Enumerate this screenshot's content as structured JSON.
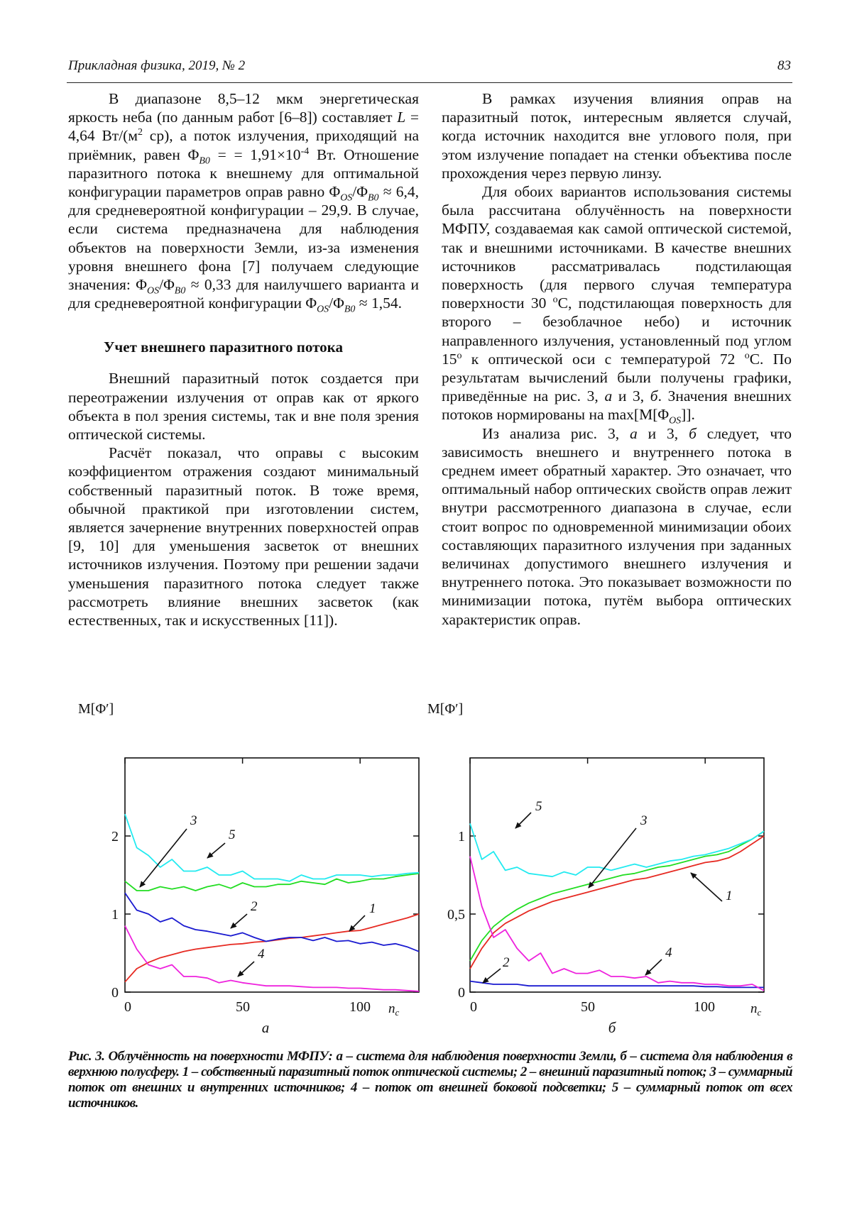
{
  "header": {
    "journal": "Прикладная физика, 2019, № 2",
    "page_number": "83"
  },
  "left_column": {
    "p1": [
      "В диапазоне 8,5–12 мкм энергетическая яркость неба (по данным работ [6–8]) составляет ",
      {
        "i": "L"
      },
      " = 4,64 Вт/(м",
      {
        "sup": "2"
      },
      " ср), а поток излучения, приходящий на приёмник, равен Φ",
      {
        "sub": "B0"
      },
      " = = 1,91×10",
      {
        "sup": "-4"
      },
      " Вт. Отношение паразитного потока к внешнему для оптимальной конфигурации параметров оправ равно Φ",
      {
        "sub": "OS"
      },
      "/Φ",
      {
        "sub": "B0"
      },
      " ≈ 6,4, для средневероятной конфигурации – 29,9. В случае, если система предназначена для наблюдения объектов на поверхности Земли, из-за изменения уровня внешнего фона [7] получаем следующие значения: Φ",
      {
        "sub": "OS"
      },
      "/Φ",
      {
        "sub": "B0"
      },
      " ≈ 0,33 для наилучшего варианта и для средневероятной конфигурации Φ",
      {
        "sub": "OS"
      },
      "/Φ",
      {
        "sub": "B0"
      },
      " ≈ 1,54."
    ],
    "heading": "Учет внешнего паразитного потока",
    "p2": [
      "Внешний паразитный поток создается при переотражении излучения от оправ как от яркого объекта в пол зрения системы, так и вне поля зрения оптической системы."
    ],
    "p3": [
      "Расчёт показал, что оправы с высоким коэффициентом отражения создают минимальный собственный паразитный поток. В тоже время, обычной практикой при изготовлении систем, является зачернение внутренних поверхностей оправ [9, 10] для уменьшения засветок от внешних источников излучения. Поэтому при решении задачи уменьшения паразитного потока следует также рассмотреть влияние внешних засветок (как естественных, так и искусственных [11])."
    ]
  },
  "right_column": {
    "p4": [
      "В рамках изучения влияния оправ на паразитный поток, интересным является случай, когда источник находится вне углового поля, при этом излучение попадает на стенки объектива после прохождения через первую линзу."
    ],
    "p5": [
      "Для обоих вариантов использования системы была рассчитана облучённость на поверхности МФПУ, создаваемая как самой оптической системой, так и внешними источниками. В качестве внешних источников рассматривалась подстилающая поверхность (для первого случая температура поверхности 30 ",
      {
        "sup": "o"
      },
      "С, подстилающая поверхность для второго – безоблачное небо) и источник направленного излучения, установленный под углом 15",
      {
        "sup": "o"
      },
      " к оптической оси с температурой 72 ",
      {
        "sup": "o"
      },
      "С. По результатам вычислений были получены графики, приведённые на рис. 3, ",
      {
        "i": "а"
      },
      " и 3, ",
      {
        "i": "б"
      },
      ". Значения внешних потоков нормированы на max[M[Φ",
      {
        "sub": "OS"
      },
      "]]."
    ],
    "p6": [
      "Из анализа рис. 3, ",
      {
        "i": "а"
      },
      " и 3, ",
      {
        "i": "б"
      },
      " следует, что зависимость внешнего и внутреннего потока в среднем имеет обратный характер. Это означает, что оптимальный набор оптических свойств оправ лежит внутри рассмотренного диапазона в случае, если стоит вопрос по одновременной минимизации обоих составляющих паразитного излучения при заданных величинах допустимого внешнего излучения и внутреннего потока. Это показывает возможности по минимизации потока, путём выбора оптических характеристик оправ."
    ]
  },
  "caption": "Рис. 3. Облучённость на поверхности МФПУ: а – система для наблюдения поверхности Земли, б – система для наблюдения в верхнюю полусферу. 1 – собственный паразитный поток оптической системы; 2 – внешний паразитный поток; 3 – суммарный поток от внешних и внутренних источников; 4 – поток от внешней боковой подсветки; 5 – суммарный поток от всех источников.",
  "chart_data": [
    {
      "type": "line",
      "sublabel": "а",
      "ylabel": "M[Φ′]",
      "xlabel": "n",
      "xlabel_sub": "c",
      "xlim": [
        0,
        125
      ],
      "ylim": [
        0,
        3
      ],
      "xticks": [
        "0",
        "50",
        "100"
      ],
      "xtick_values": [
        0,
        50,
        100
      ],
      "yticks": [
        "0",
        "1",
        "2"
      ],
      "ytick_values": [
        0,
        1,
        2
      ],
      "grid": false,
      "x": [
        0,
        5,
        10,
        15,
        20,
        25,
        30,
        35,
        40,
        45,
        50,
        55,
        60,
        65,
        70,
        75,
        80,
        85,
        90,
        95,
        100,
        105,
        110,
        115,
        120,
        125
      ],
      "series": [
        {
          "name": "1",
          "color": "#e62a22",
          "values": [
            0.13,
            0.3,
            0.38,
            0.44,
            0.48,
            0.52,
            0.55,
            0.57,
            0.59,
            0.61,
            0.62,
            0.64,
            0.65,
            0.67,
            0.69,
            0.7,
            0.72,
            0.74,
            0.76,
            0.78,
            0.79,
            0.83,
            0.87,
            0.91,
            0.95,
            1.0
          ]
        },
        {
          "name": "2",
          "color": "#1a1ad0",
          "values": [
            1.27,
            1.05,
            1.0,
            0.9,
            0.95,
            0.85,
            0.8,
            0.78,
            0.75,
            0.72,
            0.76,
            0.7,
            0.65,
            0.68,
            0.7,
            0.7,
            0.66,
            0.7,
            0.65,
            0.66,
            0.62,
            0.64,
            0.6,
            0.62,
            0.58,
            0.52
          ]
        },
        {
          "name": "3",
          "color": "#22dd22",
          "values": [
            1.42,
            1.3,
            1.3,
            1.35,
            1.32,
            1.35,
            1.3,
            1.35,
            1.38,
            1.33,
            1.4,
            1.35,
            1.35,
            1.38,
            1.38,
            1.42,
            1.4,
            1.38,
            1.45,
            1.4,
            1.42,
            1.45,
            1.45,
            1.48,
            1.5,
            1.52
          ]
        },
        {
          "name": "4",
          "color": "#ee22dd",
          "values": [
            0.85,
            0.55,
            0.35,
            0.3,
            0.35,
            0.2,
            0.2,
            0.18,
            0.12,
            0.15,
            0.12,
            0.1,
            0.08,
            0.08,
            0.08,
            0.07,
            0.06,
            0.06,
            0.06,
            0.05,
            0.05,
            0.04,
            0.03,
            0.03,
            0.02,
            0.01
          ]
        },
        {
          "name": "5",
          "color": "#22eaf0",
          "values": [
            2.28,
            1.85,
            1.75,
            1.6,
            1.7,
            1.55,
            1.55,
            1.6,
            1.5,
            1.5,
            1.55,
            1.45,
            1.45,
            1.45,
            1.42,
            1.5,
            1.45,
            1.45,
            1.5,
            1.5,
            1.5,
            1.48,
            1.5,
            1.5,
            1.52,
            1.53
          ]
        }
      ],
      "annotations": [
        "1",
        "2",
        "3",
        "4",
        "5"
      ]
    },
    {
      "type": "line",
      "sublabel": "б",
      "ylabel": "M[Φ′]",
      "xlabel": "n",
      "xlabel_sub": "c",
      "xlim": [
        0,
        125
      ],
      "ylim": [
        0,
        1.5
      ],
      "xticks": [
        "0",
        "50",
        "100"
      ],
      "xtick_values": [
        0,
        50,
        100
      ],
      "yticks": [
        "0",
        "0,5",
        "1"
      ],
      "ytick_values": [
        0,
        0.5,
        1
      ],
      "grid": false,
      "x": [
        0,
        5,
        10,
        15,
        20,
        25,
        30,
        35,
        40,
        45,
        50,
        55,
        60,
        65,
        70,
        75,
        80,
        85,
        90,
        95,
        100,
        105,
        110,
        115,
        120,
        125
      ],
      "series": [
        {
          "name": "1",
          "color": "#e62a22",
          "values": [
            0.15,
            0.28,
            0.38,
            0.44,
            0.48,
            0.52,
            0.55,
            0.58,
            0.6,
            0.62,
            0.64,
            0.66,
            0.68,
            0.7,
            0.72,
            0.73,
            0.75,
            0.77,
            0.79,
            0.81,
            0.83,
            0.84,
            0.86,
            0.9,
            0.95,
            1.0
          ]
        },
        {
          "name": "2",
          "color": "#1a1ad0",
          "values": [
            0.07,
            0.06,
            0.05,
            0.05,
            0.05,
            0.04,
            0.04,
            0.04,
            0.04,
            0.04,
            0.04,
            0.04,
            0.04,
            0.04,
            0.04,
            0.04,
            0.04,
            0.04,
            0.04,
            0.04,
            0.035,
            0.035,
            0.03,
            0.03,
            0.03,
            0.03
          ]
        },
        {
          "name": "3",
          "color": "#22dd22",
          "values": [
            0.2,
            0.33,
            0.42,
            0.48,
            0.53,
            0.57,
            0.6,
            0.63,
            0.65,
            0.67,
            0.69,
            0.71,
            0.73,
            0.75,
            0.76,
            0.78,
            0.8,
            0.81,
            0.83,
            0.85,
            0.87,
            0.88,
            0.9,
            0.94,
            0.98,
            1.03
          ]
        },
        {
          "name": "4",
          "color": "#ee22dd",
          "values": [
            0.87,
            0.55,
            0.35,
            0.4,
            0.28,
            0.2,
            0.25,
            0.12,
            0.15,
            0.12,
            0.12,
            0.14,
            0.1,
            0.1,
            0.09,
            0.1,
            0.06,
            0.07,
            0.06,
            0.06,
            0.05,
            0.05,
            0.04,
            0.04,
            0.05,
            0.01
          ]
        },
        {
          "name": "5",
          "color": "#22eaf0",
          "values": [
            1.08,
            0.85,
            0.9,
            0.78,
            0.8,
            0.76,
            0.75,
            0.74,
            0.77,
            0.75,
            0.8,
            0.8,
            0.78,
            0.8,
            0.82,
            0.8,
            0.82,
            0.84,
            0.85,
            0.87,
            0.88,
            0.9,
            0.92,
            0.95,
            0.98,
            1.03
          ]
        }
      ],
      "annotations": [
        "1",
        "2",
        "3",
        "4",
        "5"
      ]
    }
  ]
}
